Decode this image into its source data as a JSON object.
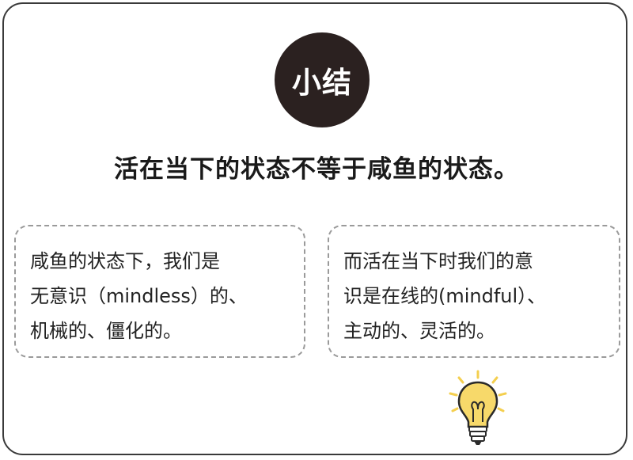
{
  "badge": {
    "label": "小结"
  },
  "headline": "活在当下的状态不等于咸鱼的状态。",
  "left_box": {
    "text": "咸鱼的状态下，我们是\n无意识（mindless）的、\n机械的、僵化的。"
  },
  "right_box": {
    "text": "而活在当下时我们的意\n识是在线的(mindful）、\n主动的、灵活的。"
  },
  "colors": {
    "badge_bg": "#2b2120",
    "bulb_yellow": "#f7d96a",
    "ray_yellow": "#f4cf4f"
  },
  "icons": [
    "lightbulb-icon"
  ]
}
